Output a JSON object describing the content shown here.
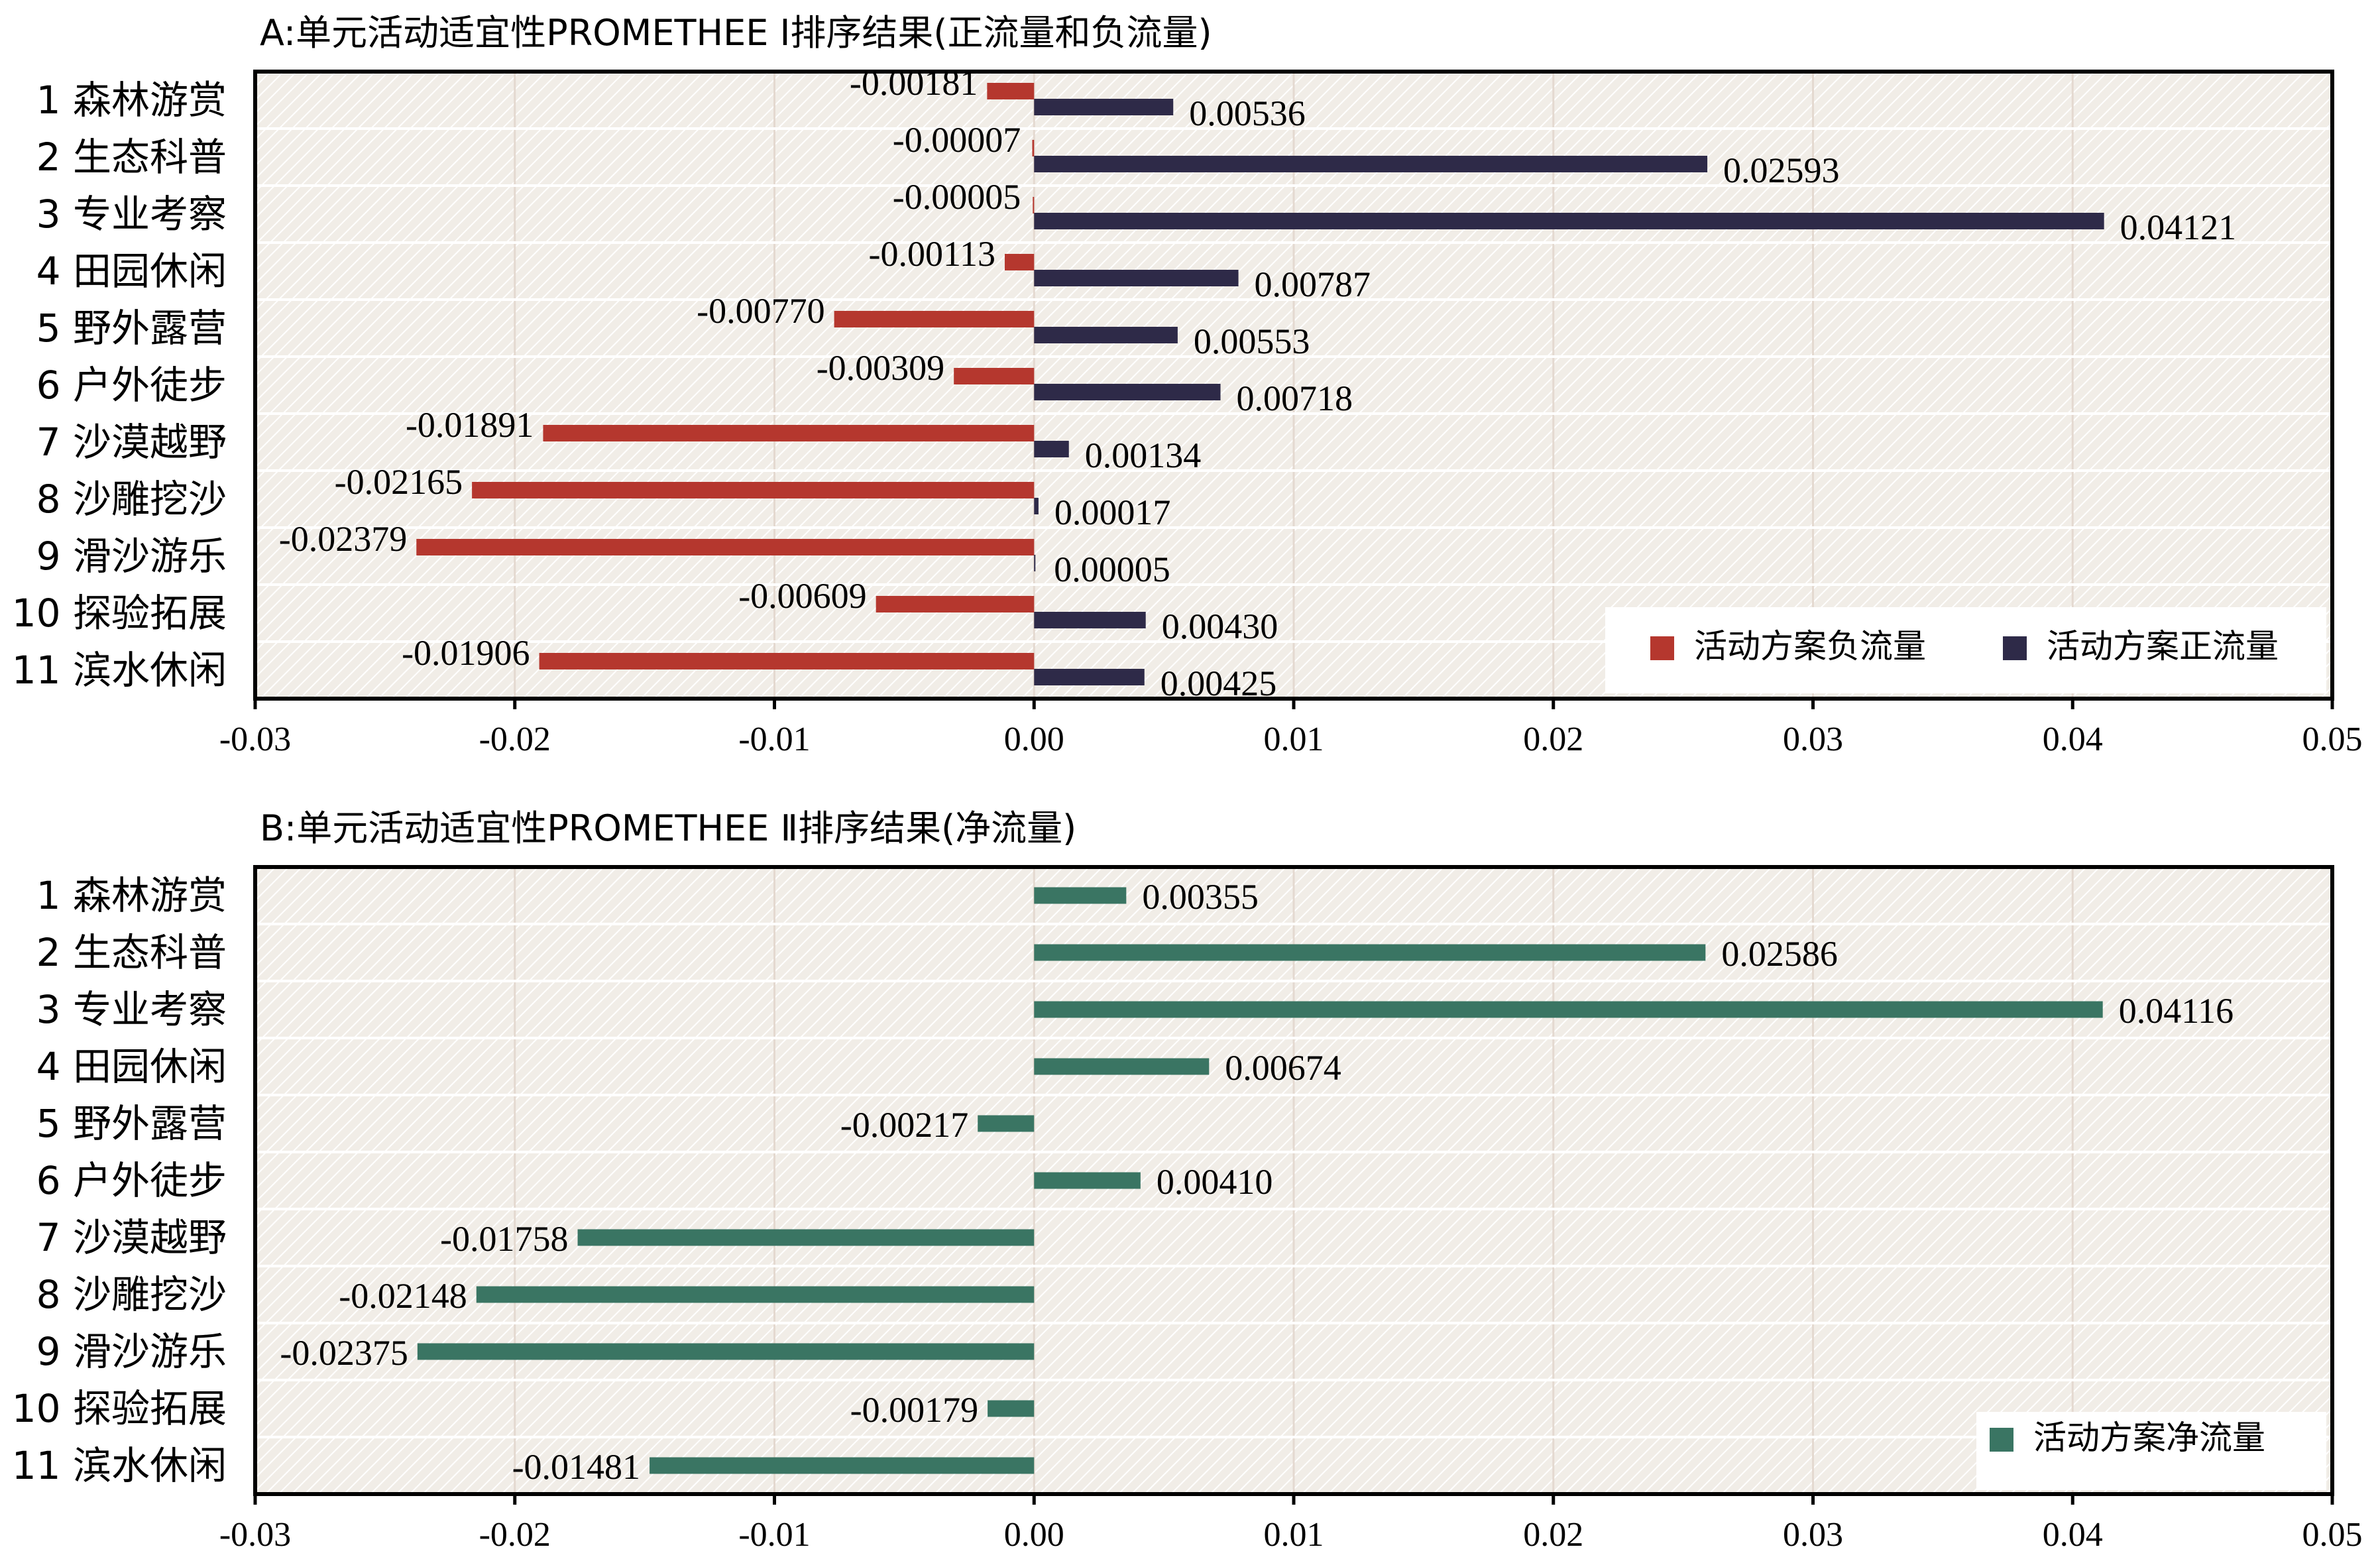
{
  "colors": {
    "negative": "#B5372E",
    "positive": "#2E2A48",
    "net": "#3A7563",
    "background": "#F1EDE7",
    "hatch": "#FFFFFF",
    "axis": "#000000"
  },
  "chart_data": [
    {
      "type": "bar",
      "orientation": "horizontal",
      "title": "A:单元活动适宜性PROMETHEE Ⅰ排序结果(正流量和负流量)",
      "categories": [
        "1 森林游赏",
        "2 生态科普",
        "3 专业考察",
        "4 田园休闲",
        "5 野外露营",
        "6 户外徒步",
        "7 沙漠越野",
        "8 沙雕挖沙",
        "9 滑沙游乐",
        "10 探验拓展",
        "11 滨水休闲"
      ],
      "series": [
        {
          "name": "活动方案负流量",
          "color": "#B5372E",
          "values": [
            -0.00181,
            -7e-05,
            -5e-05,
            -0.00113,
            -0.0077,
            -0.00309,
            -0.01891,
            -0.02165,
            -0.02379,
            -0.00609,
            -0.01906
          ],
          "labels": [
            "-0.00181",
            "-0.00007",
            "-0.00005",
            "-0.00113",
            "-0.00770",
            "-0.00309",
            "-0.01891",
            "-0.02165",
            "-0.02379",
            "-0.00609",
            "-0.01906"
          ]
        },
        {
          "name": "活动方案正流量",
          "color": "#2E2A48",
          "values": [
            0.00536,
            0.02593,
            0.04121,
            0.00787,
            0.00553,
            0.00718,
            0.00134,
            0.00017,
            5e-05,
            0.0043,
            0.00425
          ],
          "labels": [
            "0.00536",
            "0.02593",
            "0.04121",
            "0.00787",
            "0.00553",
            "0.00718",
            "0.00134",
            "0.00017",
            "0.00005",
            "0.00430",
            "0.00425"
          ]
        }
      ],
      "xlim": [
        -0.03,
        0.05
      ],
      "xticks": [
        "-0.03",
        "-0.02",
        "-0.01",
        "0.00",
        "0.01",
        "0.02",
        "0.03",
        "0.04",
        "0.05"
      ],
      "legend_position": "bottom-right",
      "grid": false
    },
    {
      "type": "bar",
      "orientation": "horizontal",
      "title": "B:单元活动适宜性PROMETHEE Ⅱ排序结果(净流量)",
      "categories": [
        "1 森林游赏",
        "2 生态科普",
        "3 专业考察",
        "4 田园休闲",
        "5 野外露营",
        "6 户外徒步",
        "7 沙漠越野",
        "8 沙雕挖沙",
        "9 滑沙游乐",
        "10 探验拓展",
        "11 滨水休闲"
      ],
      "series": [
        {
          "name": "活动方案净流量",
          "color": "#3A7563",
          "values": [
            0.00355,
            0.02586,
            0.04116,
            0.00674,
            -0.00217,
            0.0041,
            -0.01758,
            -0.02148,
            -0.02375,
            -0.00179,
            -0.01481
          ],
          "labels": [
            "0.00355",
            "0.02586",
            "0.04116",
            "0.00674",
            "-0.00217",
            "0.00410",
            "-0.01758",
            "-0.02148",
            "-0.02375",
            "-0.00179",
            "-0.01481"
          ]
        }
      ],
      "xlim": [
        -0.03,
        0.05
      ],
      "xticks": [
        "-0.03",
        "-0.02",
        "-0.01",
        "0.00",
        "0.01",
        "0.02",
        "0.03",
        "0.04",
        "0.05"
      ],
      "legend_position": "bottom-right",
      "grid": false
    }
  ]
}
